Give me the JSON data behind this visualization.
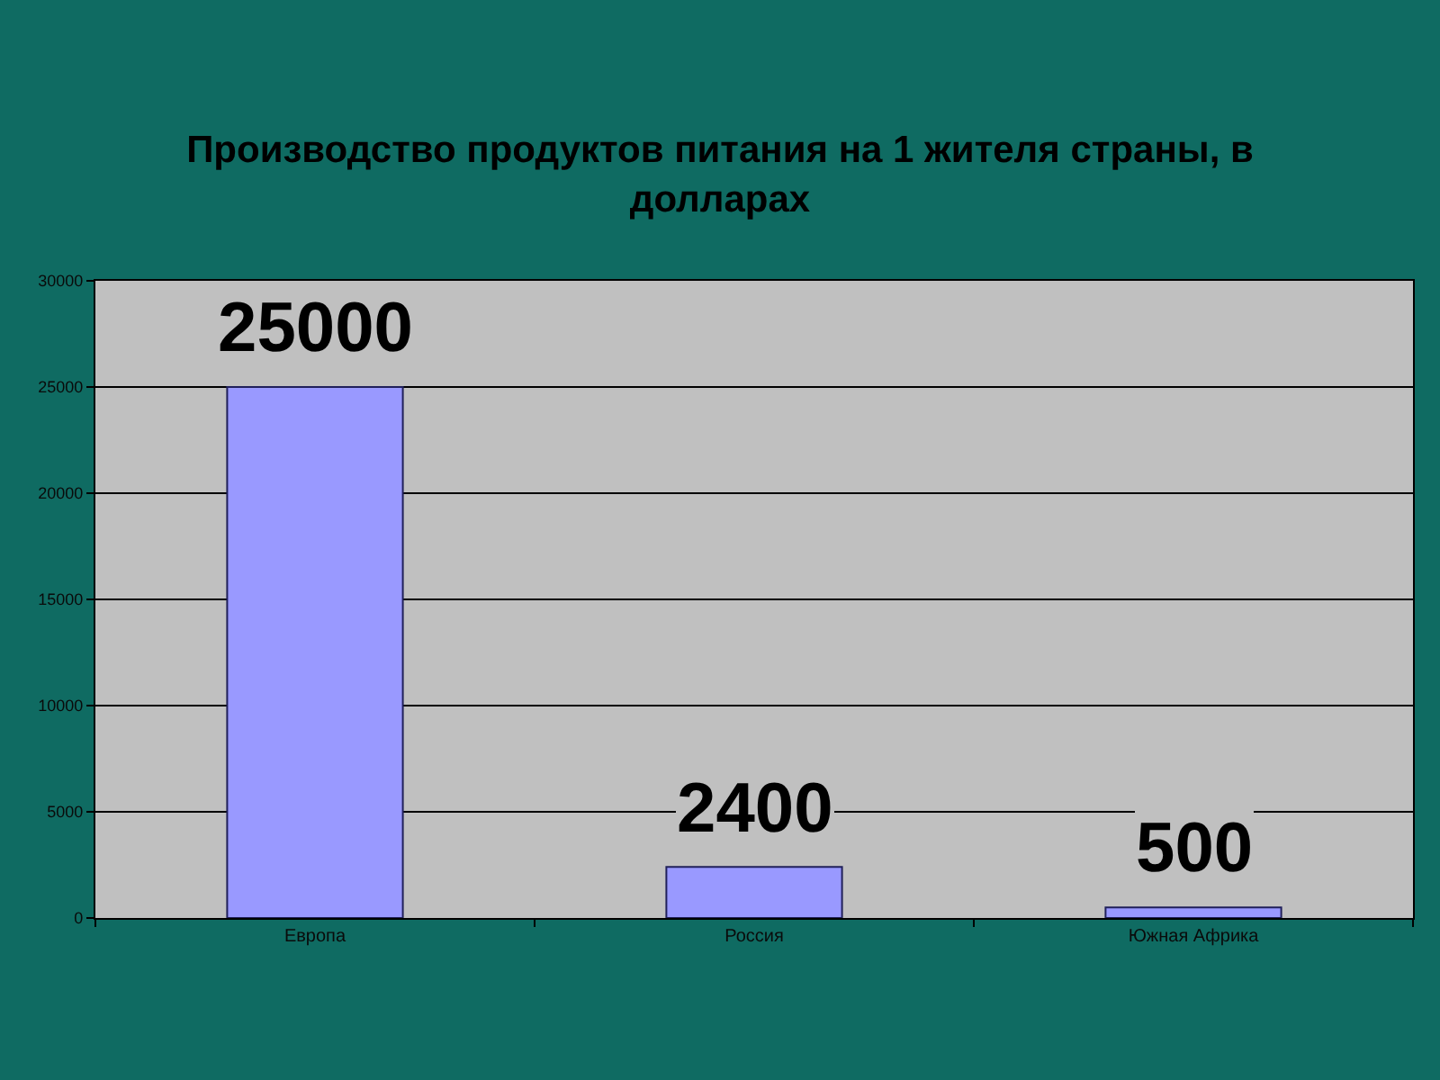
{
  "chart_data": {
    "type": "bar",
    "title": "Производство продуктов питания на 1 жителя страны, в долларах",
    "categories": [
      "Европа",
      "Россия",
      "Южная Африка"
    ],
    "values": [
      25000,
      2400,
      500
    ],
    "color": "#9999ff",
    "ylim": [
      0,
      30000
    ],
    "yticks": [
      0,
      5000,
      10000,
      15000,
      20000,
      25000,
      30000
    ],
    "grid": "y",
    "data_labels": true
  }
}
